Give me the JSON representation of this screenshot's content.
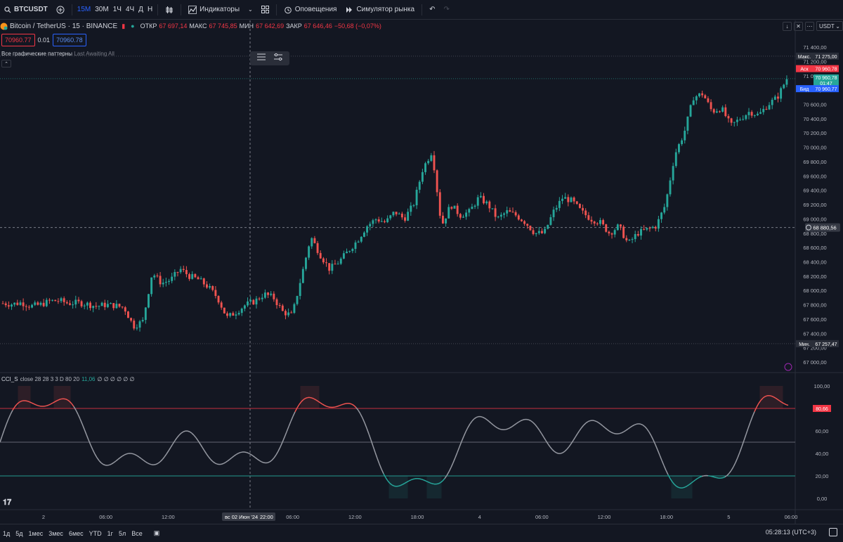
{
  "toolbar": {
    "symbol": "BTCUSDT",
    "intervals": [
      "15М",
      "30М",
      "1Ч",
      "4Ч",
      "Д",
      "Н"
    ],
    "active_interval": "15М",
    "indicators_label": "Индикаторы",
    "alerts_label": "Оповещения",
    "simulator_label": "Симулятор рынка"
  },
  "infobar": {
    "title": "Bitcoin / TetherUS · 15 · BINANCE",
    "open_label": "ОТКР",
    "open": "67 697,14",
    "high_label": "МАКС",
    "high": "67 745,85",
    "low_label": "МИН",
    "low": "67 642,69",
    "close_label": "ЗАКР",
    "close": "67 646,46",
    "change": "−50,68 (−0,07%)"
  },
  "bidask": {
    "bid": "70960.77",
    "spread": "0.01",
    "ask": "70960.78"
  },
  "patterns": {
    "label": "Все графические паттерны",
    "status": "Last Awaiting All"
  },
  "currency": "USDT",
  "price_axis": {
    "ticks": [
      "71 400,00",
      "71 200,00",
      "71 000,00",
      "70 800,00",
      "70 600,00",
      "70 400,00",
      "70 200,00",
      "70 000,00",
      "69 800,00",
      "69 600,00",
      "69 400,00",
      "69 200,00",
      "69 000,00",
      "68 800,00",
      "68 600,00",
      "68 400,00",
      "68 200,00",
      "68 000,00",
      "67 800,00",
      "67 600,00",
      "67 400,00",
      "67 200,00",
      "67 000,00"
    ],
    "max_label": "Макс.",
    "max_value": "71 275,00",
    "ask_label": "Аск",
    "ask_value": "70 960,78",
    "last_value": "70 960,78",
    "countdown": "01:47",
    "bid_label": "Бид",
    "bid_value": "70 960,77",
    "crosshair_value": "68 880,56",
    "min_label": "Мин.",
    "min_value": "67 257,47"
  },
  "cci": {
    "name": "CCI_S",
    "params": "close 28 28 3 3 D 80 20",
    "value": "11,06",
    "nulls": "∅ ∅ ∅ ∅ ∅ ∅",
    "axis_ticks": [
      "100,00",
      "80,00",
      "60,00",
      "40,00",
      "20,00",
      "0,00"
    ],
    "current_label": "80,66"
  },
  "time_axis": {
    "labels": [
      "2",
      "06:00",
      "12:00",
      "18:00",
      "06:00",
      "12:00",
      "18:00",
      "4",
      "06:00",
      "12:00",
      "18:00",
      "5",
      "06:00"
    ],
    "crosshair_date": "вс 02 Июн '24",
    "crosshair_time": "22:00"
  },
  "bottombar": {
    "ranges": [
      "1д",
      "5д",
      "1мес",
      "3мес",
      "6мес",
      "YTD",
      "1г",
      "5л",
      "Все"
    ],
    "clock": "05:28:13 (UTC+3)"
  },
  "colors": {
    "up": "#26a69a",
    "down": "#ef5350",
    "accent": "#2962ff",
    "bg": "#131722"
  },
  "chart_data": {
    "type": "candlestick",
    "ylim": [
      67000,
      71450
    ],
    "close_path": [
      67820,
      67810,
      67830,
      67780,
      67800,
      67850,
      67860,
      67820,
      67830,
      67810,
      67780,
      67800,
      67790,
      67760,
      67500,
      67570,
      68250,
      68100,
      68150,
      68300,
      68200,
      68150,
      68050,
      67900,
      67620,
      67700,
      67800,
      67850,
      67950,
      67900,
      67700,
      67650,
      68200,
      68750,
      68500,
      68300,
      68400,
      68550,
      68700,
      68900,
      69000,
      68950,
      69100,
      69000,
      69200,
      69700,
      69950,
      68900,
      69200,
      69050,
      69100,
      69300,
      69200,
      69000,
      69100,
      69050,
      68950,
      68800,
      68800,
      69100,
      69300,
      69250,
      69100,
      69000,
      68950,
      68800,
      68900,
      68650,
      68800,
      68850,
      68900,
      69200,
      69900,
      70200,
      70700,
      70750,
      70500,
      70550,
      70300,
      70400,
      70500,
      70450,
      70600,
      70700,
      70960
    ]
  }
}
